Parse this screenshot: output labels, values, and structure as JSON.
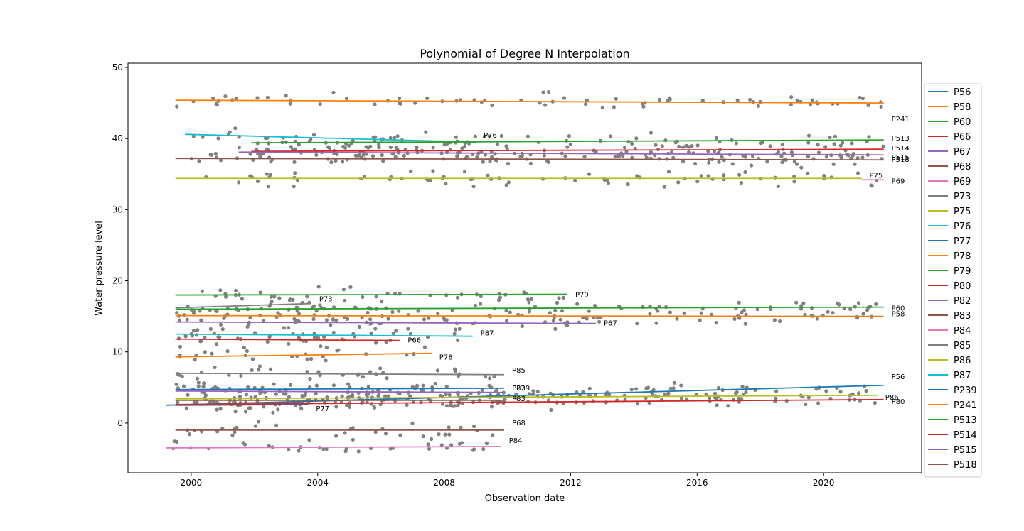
{
  "chart_data": {
    "type": "line",
    "title": "Polynomial of Degree N Interpolation",
    "xlabel": "Observation date",
    "ylabel": "Water pressure level",
    "xlim": [
      1998.0,
      2023.1
    ],
    "ylim": [
      -7.0,
      50.6
    ],
    "x_ticks": [
      2000,
      2004,
      2008,
      2012,
      2016,
      2020
    ],
    "y_ticks": [
      0,
      10,
      20,
      30,
      40,
      50
    ],
    "grid": false,
    "legend_position": "right",
    "scatter_color": "#808080",
    "series": [
      {
        "name": "P56",
        "color": "#1f77b4",
        "x": [
          1999.2,
          2021.9
        ],
        "y": [
          2.5,
          5.3
        ],
        "label_y": 6.5
      },
      {
        "name": "P58",
        "color": "#ff7f0e",
        "x": [
          1999.5,
          2021.9
        ],
        "y": [
          15.1,
          15.0
        ],
        "label_y": 15.3
      },
      {
        "name": "P60",
        "color": "#2ca02c",
        "x": [
          1999.5,
          2021.9
        ],
        "y": [
          16.0,
          16.3
        ],
        "label_y": 16.1
      },
      {
        "name": "P66",
        "color": "#d62728",
        "x": [
          1999.5,
          2006.6
        ],
        "y": [
          11.8,
          11.6
        ],
        "label_y": 11.6
      },
      {
        "name": "P67",
        "color": "#9467bd",
        "x": [
          1999.5,
          2012.8
        ],
        "y": [
          14.2,
          14.0
        ],
        "label_y": 14.0
      },
      {
        "name": "P68",
        "color": "#8c564b",
        "x": [
          1999.5,
          2009.9
        ],
        "y": [
          -1.0,
          -1.0
        ],
        "label_y": 0.0
      },
      {
        "name": "P69",
        "color": "#e377c2",
        "x": [
          2021.2,
          2021.9
        ],
        "y": [
          34.2,
          34.2
        ],
        "label_y": 34.0
      },
      {
        "name": "P73",
        "color": "#7f7f7f",
        "x": [
          1999.5,
          2003.8
        ],
        "y": [
          16.2,
          16.8
        ],
        "label_y": 17.4
      },
      {
        "name": "P75",
        "color": "#bcbd22",
        "x": [
          1999.5,
          2021.2
        ],
        "y": [
          34.4,
          34.4
        ],
        "label_y": 34.8
      },
      {
        "name": "P76",
        "color": "#17becf",
        "x": [
          1999.8,
          2009.0
        ],
        "y": [
          40.6,
          39.5
        ],
        "label_y": 40.4
      },
      {
        "name": "P77",
        "color": "#1f77b4",
        "x": [
          1999.5,
          2003.7
        ],
        "y": [
          2.5,
          2.6
        ],
        "label_y": 2.0
      },
      {
        "name": "P78",
        "color": "#ff7f0e",
        "x": [
          1999.5,
          2007.6
        ],
        "y": [
          9.3,
          9.8
        ],
        "label_y": 9.2
      },
      {
        "name": "P79",
        "color": "#2ca02c",
        "x": [
          1999.5,
          2011.9
        ],
        "y": [
          18.0,
          18.1
        ],
        "label_y": 18.0
      },
      {
        "name": "P80",
        "color": "#d62728",
        "x": [
          1999.5,
          2021.9
        ],
        "y": [
          2.6,
          3.3
        ],
        "label_y": 3.0
      },
      {
        "name": "P82",
        "color": "#9467bd",
        "x": [
          1999.5,
          2009.9
        ],
        "y": [
          4.5,
          4.3
        ],
        "label_y": 4.9
      },
      {
        "name": "P83",
        "color": "#8c564b",
        "x": [
          1999.5,
          2009.9
        ],
        "y": [
          3.2,
          3.2
        ],
        "label_y": 3.4
      },
      {
        "name": "P84",
        "color": "#e377c2",
        "x": [
          1999.2,
          2009.8
        ],
        "y": [
          -3.5,
          -3.3
        ],
        "label_y": -2.5
      },
      {
        "name": "P85",
        "color": "#7f7f7f",
        "x": [
          1999.5,
          2009.9
        ],
        "y": [
          7.0,
          6.8
        ],
        "label_y": 7.4
      },
      {
        "name": "P86",
        "color": "#bcbd22",
        "x": [
          1999.5,
          2021.7
        ],
        "y": [
          3.4,
          3.9
        ],
        "label_y": 3.6
      },
      {
        "name": "P87",
        "color": "#17becf",
        "x": [
          1999.5,
          2008.9
        ],
        "y": [
          12.5,
          12.2
        ],
        "label_y": 12.6
      },
      {
        "name": "P239",
        "color": "#1f77b4",
        "x": [
          1999.5,
          2009.9
        ],
        "y": [
          4.7,
          4.9
        ],
        "label_y": 4.9
      },
      {
        "name": "P241",
        "color": "#ff7f0e",
        "x": [
          1999.5,
          2021.9
        ],
        "y": [
          45.4,
          45.0
        ],
        "label_y": 42.7
      },
      {
        "name": "P513",
        "color": "#2ca02c",
        "x": [
          2001.9,
          2021.9
        ],
        "y": [
          39.4,
          39.8
        ],
        "label_y": 40.0
      },
      {
        "name": "P514",
        "color": "#d62728",
        "x": [
          2001.9,
          2021.9
        ],
        "y": [
          38.2,
          38.5
        ],
        "label_y": 38.6
      },
      {
        "name": "P515",
        "color": "#9467bd",
        "x": [
          2001.5,
          2021.9
        ],
        "y": [
          38.1,
          37.7
        ],
        "label_y": 37.3
      },
      {
        "name": "P518",
        "color": "#8c564b",
        "x": [
          1999.5,
          2021.9
        ],
        "y": [
          37.2,
          37.0
        ],
        "label_y": 37.0
      }
    ]
  }
}
